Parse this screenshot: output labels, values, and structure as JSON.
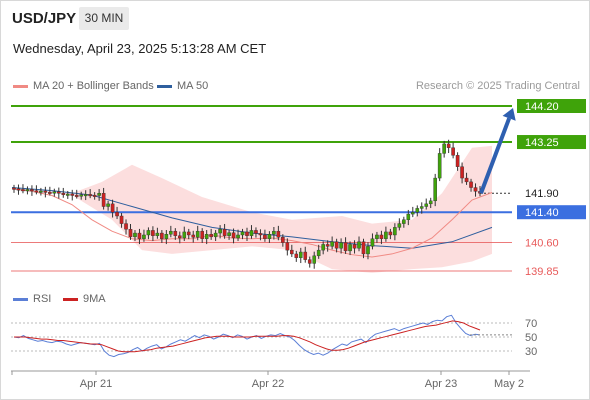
{
  "header": {
    "pair": "USD/JPY",
    "timeframe": "30 MIN",
    "datetime": "Wednesday, April 23, 2025 5:13:28 AM CET"
  },
  "legend": [
    {
      "label": "MA 20 + Bollinger Bands",
      "color": "#f08a84"
    },
    {
      "label": "MA 50",
      "color": "#2f5f9e"
    }
  ],
  "credit": "Research © 2025 Trading Central",
  "colors": {
    "resistance": "#3fa30a",
    "support": "#3b6fe0",
    "minor": "#e85a5a",
    "arrow": "#2e5fb0",
    "bull": "#3fa30a",
    "bear": "#cc2222",
    "band": "#fbd3d3"
  },
  "levels": [
    {
      "label": "144.20",
      "value": 144.2,
      "kind": "resistance"
    },
    {
      "label": "143.25",
      "value": 143.25,
      "kind": "resistance"
    },
    {
      "label": "141.90",
      "value": 141.9,
      "kind": "current"
    },
    {
      "label": "141.40",
      "value": 141.4,
      "kind": "support"
    },
    {
      "label": "140.60",
      "value": 140.6,
      "kind": "minor"
    },
    {
      "label": "139.85",
      "value": 139.85,
      "kind": "minor"
    }
  ],
  "chart_data": {
    "type": "candlestick",
    "x_labels": [
      "Apr 21",
      "Apr 22",
      "Apr 23",
      "May 2"
    ],
    "price_closes": [
      142.02,
      142.0,
      141.98,
      142.0,
      141.97,
      141.95,
      141.96,
      141.93,
      141.92,
      141.94,
      141.9,
      141.86,
      141.88,
      141.85,
      141.84,
      141.86,
      141.87,
      141.85,
      141.84,
      141.9,
      141.55,
      141.62,
      141.4,
      141.3,
      141.1,
      140.95,
      140.75,
      140.85,
      140.7,
      140.8,
      140.92,
      140.78,
      140.85,
      140.7,
      140.82,
      140.9,
      140.78,
      140.72,
      140.88,
      140.8,
      140.74,
      140.9,
      140.7,
      140.82,
      140.75,
      140.85,
      140.95,
      140.78,
      140.86,
      140.72,
      140.8,
      140.88,
      140.78,
      140.92,
      140.84,
      140.8,
      140.7,
      140.82,
      140.9,
      140.74,
      140.6,
      140.4,
      140.3,
      140.2,
      140.35,
      140.15,
      140.05,
      140.25,
      140.4,
      140.55,
      140.5,
      140.62,
      140.45,
      140.6,
      140.38,
      140.55,
      140.45,
      140.62,
      140.3,
      140.5,
      140.7,
      140.8,
      140.7,
      140.88,
      140.8,
      141.0,
      141.1,
      141.2,
      141.35,
      141.4,
      141.5,
      141.55,
      141.62,
      141.7,
      142.3,
      142.95,
      143.2,
      143.1,
      142.9,
      142.6,
      142.3,
      142.2,
      142.05,
      141.95,
      141.9
    ],
    "ma20": [
      [
        0,
        142.02
      ],
      [
        20,
        141.95
      ],
      [
        40,
        141.84
      ],
      [
        60,
        141.6
      ],
      [
        80,
        141.2
      ],
      [
        100,
        140.9
      ],
      [
        120,
        140.7
      ],
      [
        140,
        140.65
      ],
      [
        160,
        140.7
      ],
      [
        180,
        140.7
      ],
      [
        200,
        140.8
      ],
      [
        220,
        140.72
      ],
      [
        240,
        140.7
      ],
      [
        260,
        140.72
      ],
      [
        280,
        140.65
      ],
      [
        300,
        140.55
      ],
      [
        320,
        140.4
      ],
      [
        340,
        140.28
      ],
      [
        360,
        140.22
      ],
      [
        380,
        140.3
      ],
      [
        400,
        140.45
      ],
      [
        420,
        140.72
      ],
      [
        440,
        141.2
      ],
      [
        460,
        141.72
      ],
      [
        480,
        141.92
      ]
    ],
    "ma50": [
      [
        0,
        142.05
      ],
      [
        40,
        141.97
      ],
      [
        80,
        141.85
      ],
      [
        120,
        141.55
      ],
      [
        160,
        141.25
      ],
      [
        200,
        141.0
      ],
      [
        240,
        140.85
      ],
      [
        280,
        140.75
      ],
      [
        320,
        140.62
      ],
      [
        360,
        140.52
      ],
      [
        400,
        140.45
      ],
      [
        440,
        140.62
      ],
      [
        480,
        141.0
      ]
    ],
    "bb_upper": [
      [
        0,
        142.02
      ],
      [
        60,
        141.9
      ],
      [
        90,
        142.2
      ],
      [
        120,
        142.65
      ],
      [
        150,
        142.3
      ],
      [
        190,
        141.8
      ],
      [
        240,
        141.4
      ],
      [
        280,
        141.2
      ],
      [
        330,
        141.3
      ],
      [
        360,
        141.1
      ],
      [
        400,
        141.2
      ],
      [
        430,
        141.9
      ],
      [
        460,
        143.1
      ],
      [
        480,
        143.15
      ]
    ],
    "bb_lower": [
      [
        0,
        142.02
      ],
      [
        60,
        141.85
      ],
      [
        100,
        141.2
      ],
      [
        130,
        140.4
      ],
      [
        160,
        140.3
      ],
      [
        200,
        140.4
      ],
      [
        240,
        140.5
      ],
      [
        280,
        140.4
      ],
      [
        320,
        139.9
      ],
      [
        360,
        139.8
      ],
      [
        400,
        139.9
      ],
      [
        430,
        139.95
      ],
      [
        460,
        140.1
      ],
      [
        480,
        140.3
      ]
    ],
    "projection": {
      "from": 141.9,
      "to": 144.2
    },
    "rsi": {
      "legend": [
        {
          "label": "RSI",
          "color": "#5b7fd6"
        },
        {
          "label": "9MA",
          "color": "#cc2222"
        }
      ],
      "levels": [
        "70",
        "50",
        "30"
      ],
      "values": [
        50,
        49,
        52,
        48,
        46,
        44,
        45,
        43,
        42,
        44,
        43,
        40,
        38,
        40,
        42,
        41,
        40,
        39,
        41,
        30,
        24,
        22,
        25,
        26,
        28,
        32,
        35,
        30,
        34,
        37,
        39,
        33,
        36,
        40,
        43,
        46,
        44,
        48,
        52,
        49,
        53,
        51,
        47,
        50,
        54,
        52,
        49,
        53,
        51,
        47,
        50,
        52,
        48,
        51,
        53,
        52,
        55,
        52,
        50,
        45,
        38,
        32,
        28,
        25,
        27,
        24,
        27,
        32,
        36,
        40,
        38,
        43,
        45,
        47,
        42,
        49,
        54,
        56,
        58,
        60,
        62,
        59,
        62,
        64,
        66,
        68,
        70,
        68,
        72,
        74,
        73,
        79,
        81,
        70,
        62,
        55,
        52,
        54,
        53
      ],
      "ma": [
        50,
        50,
        50,
        49,
        48,
        47,
        47,
        46,
        45,
        45,
        44,
        43,
        42,
        41,
        40,
        40,
        39,
        36,
        33,
        30,
        29,
        29,
        29,
        30,
        31,
        32,
        34,
        35,
        36,
        37,
        39,
        41,
        43,
        45,
        47,
        49,
        50,
        51,
        51,
        51,
        50,
        50,
        50,
        50,
        51,
        51,
        51,
        51,
        51,
        52,
        52,
        51,
        49,
        46,
        43,
        39,
        36,
        33,
        31,
        31,
        32,
        34,
        37,
        40,
        43,
        45,
        47,
        49,
        51,
        53,
        55,
        57,
        59,
        61,
        63,
        65,
        66,
        67,
        69,
        71,
        73,
        72,
        70,
        66,
        63,
        60
      ]
    }
  }
}
